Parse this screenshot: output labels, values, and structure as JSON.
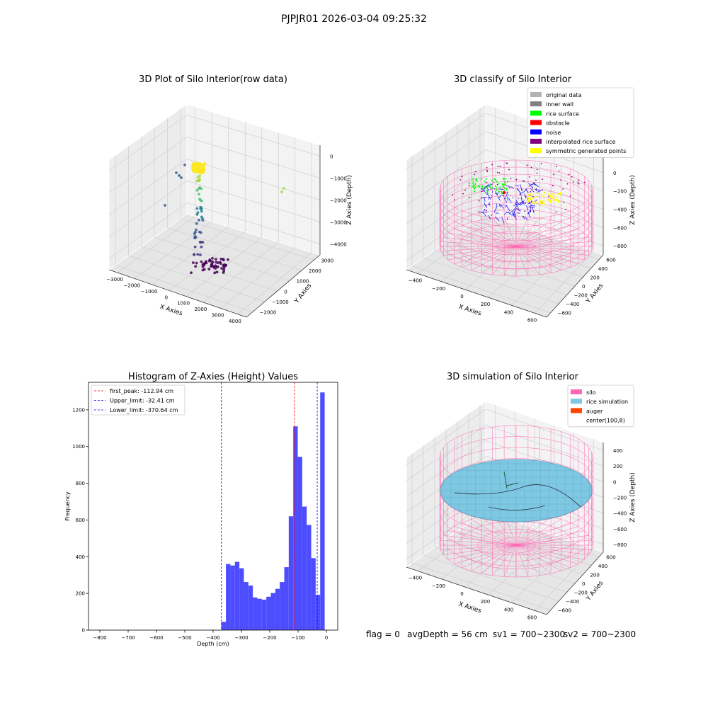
{
  "suptitle": "PJPJR01 2026-03-04 09:25:32",
  "footer": {
    "flag": "flag = 0",
    "avg_depth": "avgDepth = 56 cm",
    "sv1": "sv1 = 700~2300",
    "sv2": "sv2 = 700~2300"
  },
  "colors": {
    "hist_bar": "#4d4dff",
    "first_peak": "#ff0000",
    "limit": "#0000ff",
    "original_data": "#b3b3b3",
    "inner_wall": "#808080",
    "rice_surface": "#00ff00",
    "obstacle": "#ff0000",
    "noise": "#0000ff",
    "interpolated": "#800080",
    "symmetric": "#ffff00",
    "silo": "#ff69b4",
    "rice_simulation": "#7ec8e3",
    "auger": "#ff4500"
  },
  "chart_data": [
    {
      "type": "scatter",
      "projection": "3d",
      "title": "3D Plot of Silo Interior(row data)",
      "xlabel": "X Axies",
      "ylabel": "Y Axies",
      "zlabel": "Z Axies (Depth)",
      "xticks": [
        "−3000",
        "−2000",
        "−1000",
        "0",
        "1000",
        "2000",
        "3000",
        "4000"
      ],
      "yticks": [
        "−2000",
        "−1000",
        "0",
        "1000",
        "2000",
        "3000"
      ],
      "zticks": [
        "0",
        "−1000",
        "−2000",
        "−3000",
        "−4000"
      ],
      "colormap": "viridis"
    },
    {
      "type": "scatter",
      "projection": "3d",
      "title": "3D classify of Silo Interior",
      "xlabel": "X Axies",
      "ylabel": "Y Axies",
      "zlabel": "Z Axies (Depth)",
      "xticks": [
        "−400",
        "−200",
        "0",
        "200",
        "400",
        "600"
      ],
      "yticks": [
        "−600",
        "−400",
        "−200",
        "0",
        "200",
        "400",
        "600"
      ],
      "zticks": [
        "200",
        "0",
        "−200",
        "−400",
        "−600",
        "−800"
      ],
      "legend_position": "top-right",
      "legend": [
        {
          "label": "original data",
          "color": "#b3b3b3"
        },
        {
          "label": "inner wall",
          "color": "#808080"
        },
        {
          "label": "rice surface",
          "color": "#00ff00"
        },
        {
          "label": "obstacle",
          "color": "#ff0000"
        },
        {
          "label": "noise",
          "color": "#0000ff"
        },
        {
          "label": "interpolated rice surface",
          "color": "#800080"
        },
        {
          "label": "symmetric generated points",
          "color": "#ffff00"
        }
      ]
    },
    {
      "type": "bar",
      "title": "Histogram of Z-Axies (Height) Values",
      "xlabel": "Depth (cm)",
      "ylabel": "Frequency",
      "xlim": [
        -840,
        40
      ],
      "ylim": [
        0,
        1350
      ],
      "xticks": [
        -800,
        -700,
        -600,
        -500,
        -400,
        -300,
        -200,
        -100,
        0
      ],
      "xtick_labels": [
        "−800",
        "−700",
        "−600",
        "−500",
        "−400",
        "−300",
        "−200",
        "−100",
        "0"
      ],
      "yticks": [
        0,
        200,
        400,
        600,
        800,
        1000,
        1200
      ],
      "bin_edges": [
        -370.64,
        -354.8,
        -338.9,
        -323.1,
        -307.2,
        -291.4,
        -275.5,
        -259.7,
        -243.8,
        -228.0,
        -212.1,
        -196.3,
        -180.4,
        -164.6,
        -148.7,
        -132.9,
        -117.0,
        -101.2,
        -85.3,
        -69.5,
        -53.6,
        -37.8,
        -21.9,
        -6.1,
        9.8
      ],
      "values": [
        45,
        360,
        352,
        372,
        337,
        262,
        243,
        178,
        171,
        166,
        182,
        202,
        225,
        262,
        343,
        620,
        1110,
        944,
        673,
        573,
        392,
        192,
        1295,
        0
      ],
      "legend_position": "top-left",
      "lines": [
        {
          "label": "first_peak: -112.94 cm",
          "x": -112.94,
          "color": "#ff0000"
        },
        {
          "label": "Upper_limit: -32.41 cm",
          "x": -32.41,
          "color": "#0000ff"
        },
        {
          "label": "Lower_limit: -370.64 cm",
          "x": -370.64,
          "color": "#0000ff"
        }
      ]
    },
    {
      "type": "scatter",
      "projection": "3d",
      "title": "3D simulation of Silo Interior",
      "xlabel": "X Axies",
      "ylabel": "Y Axies",
      "zlabel": "Z Axies (Depth)",
      "xticks": [
        "−400",
        "−200",
        "0",
        "200",
        "400",
        "600"
      ],
      "yticks": [
        "−600",
        "−400",
        "−200",
        "0",
        "200",
        "400",
        "600"
      ],
      "zticks": [
        "400",
        "200",
        "0",
        "−200",
        "−400",
        "−600",
        "−800"
      ],
      "legend_position": "top-right",
      "legend": [
        {
          "label": "silo",
          "color": "#ff69b4"
        },
        {
          "label": "rice simulation",
          "color": "#7ec8e3"
        },
        {
          "label": "auger",
          "color": "#ff4500"
        },
        {
          "label": "center(100,8)",
          "color": "none"
        }
      ]
    }
  ]
}
